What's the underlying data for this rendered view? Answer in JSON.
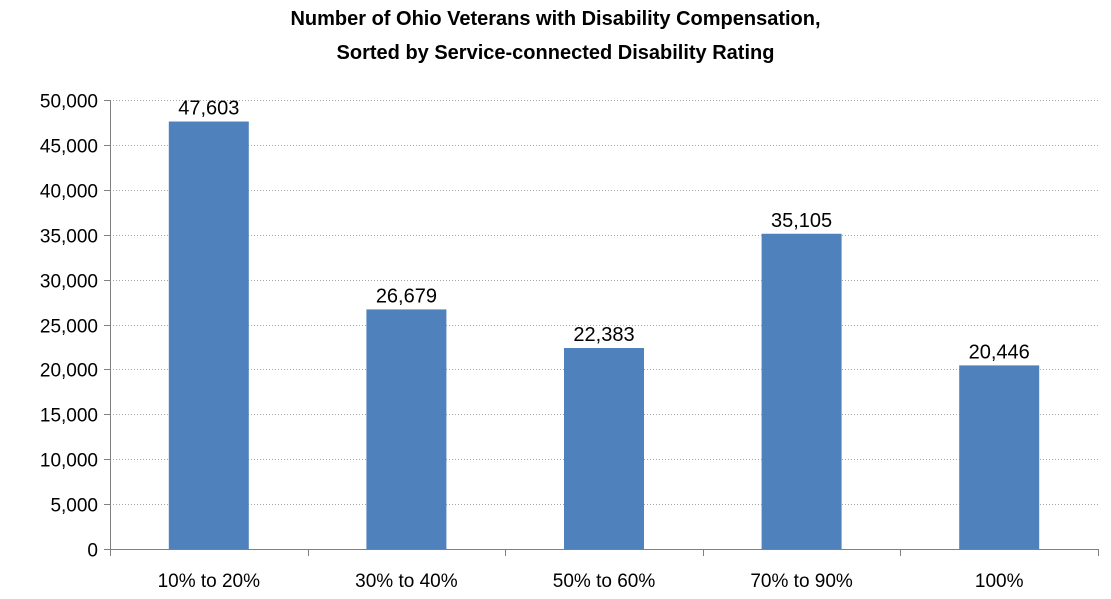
{
  "chart_data": {
    "type": "bar",
    "title_lines": [
      "Number of Ohio Veterans with Disability Compensation,",
      "Sorted by Service-connected Disability Rating"
    ],
    "categories": [
      "10% to 20%",
      "30% to 40%",
      "50% to 60%",
      "70% to 90%",
      "100%"
    ],
    "values": [
      47603,
      26679,
      22383,
      35105,
      20446
    ],
    "data_labels": [
      "47,603",
      "26,679",
      "22,383",
      "35,105",
      "20,446"
    ],
    "y_ticks": [
      0,
      5000,
      10000,
      15000,
      20000,
      25000,
      30000,
      35000,
      40000,
      45000,
      50000
    ],
    "y_tick_labels": [
      "0",
      "5,000",
      "10,000",
      "15,000",
      "20,000",
      "25,000",
      "30,000",
      "35,000",
      "40,000",
      "45,000",
      "50,000"
    ],
    "ylim": [
      0,
      50000
    ],
    "xlabel": "",
    "ylabel": "",
    "grid": true,
    "legend": false,
    "bar_color": "#4F81BD",
    "grid_color": "#A6A6A6",
    "axis_color": "#808080"
  }
}
